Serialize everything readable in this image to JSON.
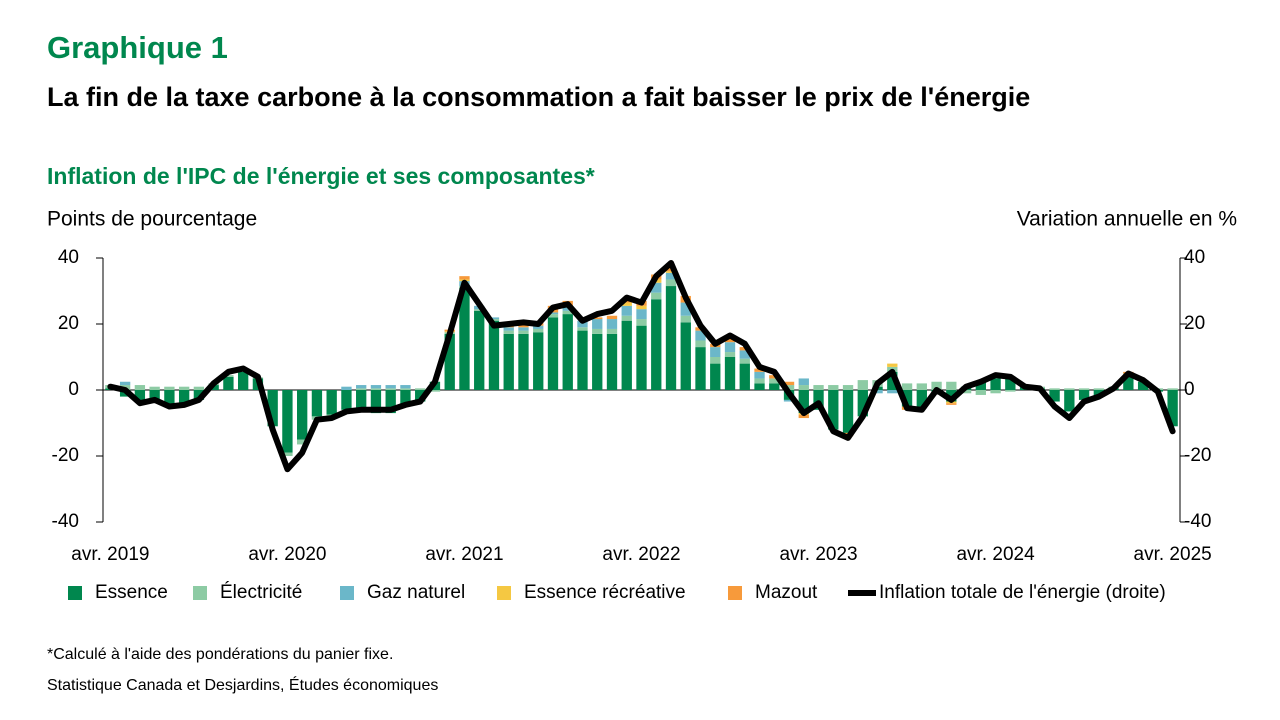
{
  "chart_data": {
    "type": "bar",
    "kicker": "Graphique 1",
    "title": "La fin de la taxe carbone à la consommation a fait baisser le prix de l'énergie",
    "subtitle": "Inflation de l'IPC de l'énergie et ses composantes*",
    "ylabel": "Points de pourcentage",
    "y2label": "Variation annuelle en %",
    "note": "*Calculé à l'aide des pondérations du panier fixe.",
    "source": "Statistique Canada et Desjardins, Études économiques",
    "stacked": true,
    "categories": [
      "avr. 2019",
      null,
      null,
      null,
      null,
      null,
      null,
      null,
      null,
      null,
      null,
      null,
      "avr. 2020",
      null,
      null,
      null,
      null,
      null,
      null,
      null,
      null,
      null,
      null,
      null,
      "avr. 2021",
      null,
      null,
      null,
      null,
      null,
      null,
      null,
      null,
      null,
      null,
      null,
      "avr. 2022",
      null,
      null,
      null,
      null,
      null,
      null,
      null,
      null,
      null,
      null,
      null,
      "avr. 2023",
      null,
      null,
      null,
      null,
      null,
      null,
      null,
      null,
      null,
      null,
      null,
      "avr. 2024",
      null,
      null,
      null,
      null,
      null,
      null,
      null,
      null,
      null,
      null,
      null,
      "avr. 2025"
    ],
    "ylim": [
      -40,
      40
    ],
    "yticks": [
      -40,
      -20,
      0,
      20,
      40
    ],
    "y2lim": [
      -40,
      40
    ],
    "y2ticks": [
      -40,
      -20,
      0,
      20,
      40
    ],
    "series": [
      {
        "name": "Essence",
        "color": "#00874e",
        "values": [
          0.5,
          -2,
          -3.5,
          -3,
          -4.5,
          -4,
          -3,
          1.5,
          4,
          5.5,
          3.5,
          -11,
          -19,
          -15,
          -8,
          -7.5,
          -6,
          -6.5,
          -7,
          -7,
          -5,
          -3.5,
          2.5,
          17,
          31,
          24,
          21,
          17,
          17,
          17.5,
          22,
          23,
          18,
          17,
          17,
          21,
          19.5,
          27.5,
          31.5,
          20.5,
          13,
          8,
          10,
          8,
          2,
          2,
          -3,
          -7,
          -6,
          -12,
          -13,
          -8,
          1,
          5.5,
          -5,
          -5.5,
          -1,
          -3.5,
          1,
          2.5,
          3.5,
          4,
          1,
          0.5,
          -3.5,
          -6.5,
          -3,
          -2,
          0.5,
          4.5,
          2.5,
          -0.5,
          -11
        ]
      },
      {
        "name": "Électricité",
        "color": "#8dcba4",
        "values": [
          1,
          1.5,
          1.5,
          1,
          1,
          1,
          1,
          0.5,
          0.5,
          0.5,
          0.3,
          0,
          -1,
          -1.5,
          -1,
          -0.5,
          0,
          0.5,
          0.5,
          0.5,
          0.5,
          0.5,
          -0.5,
          0.5,
          0.5,
          0.5,
          0.5,
          1,
          1,
          1,
          1,
          1,
          1,
          1.5,
          1.5,
          1.5,
          2,
          2,
          2,
          2,
          2,
          2,
          1.5,
          1.5,
          1.5,
          1.5,
          1.5,
          1.5,
          1.5,
          1.5,
          1.5,
          3,
          2,
          1.5,
          2,
          2,
          2.5,
          2.5,
          -1,
          -1.5,
          -1,
          -0.5,
          0.5,
          0.5,
          0.5,
          0.5,
          0.5,
          0.5,
          0.5,
          0.5,
          0.5,
          0.5,
          0.5
        ]
      },
      {
        "name": "Gaz naturel",
        "color": "#6bb7c9",
        "values": [
          0,
          1,
          0,
          0,
          0,
          0,
          0,
          0,
          0,
          0,
          0,
          0,
          0,
          0,
          0,
          0,
          1,
          1,
          1,
          1,
          1,
          0,
          0,
          0,
          1.5,
          1,
          0.5,
          1,
          1,
          1,
          0.5,
          1,
          2,
          3,
          3,
          3,
          3,
          3,
          2,
          4,
          3,
          3,
          3,
          2.5,
          2,
          0,
          -0.5,
          2,
          0,
          0,
          0,
          0,
          -1,
          -1,
          0,
          0,
          0,
          0,
          0,
          0,
          0,
          0,
          0,
          0,
          0,
          0,
          0,
          0,
          0,
          0,
          0,
          0,
          0
        ]
      },
      {
        "name": "Essence récréative",
        "color": "#f5c842",
        "values": [
          0,
          0,
          0,
          0,
          0,
          0,
          0,
          0,
          0,
          0,
          0,
          0,
          0,
          0,
          0,
          0,
          0,
          0,
          0,
          0,
          0,
          0,
          0,
          0.3,
          0.5,
          0,
          0,
          0,
          0,
          0,
          0,
          0,
          0,
          0,
          0,
          1,
          1,
          1,
          0.5,
          0,
          0,
          0,
          0,
          0,
          0,
          0,
          0,
          -0.5,
          0,
          0,
          0,
          0,
          0,
          1,
          0,
          0,
          0,
          -0.5,
          0,
          0,
          0,
          0,
          0,
          0,
          0,
          0,
          0,
          0,
          0,
          0,
          0,
          0,
          0
        ]
      },
      {
        "name": "Mazout",
        "color": "#f79a3b",
        "values": [
          0,
          0,
          0,
          0,
          0,
          0,
          0,
          0,
          0,
          0,
          0,
          0,
          0,
          0,
          0,
          0,
          0,
          0,
          0,
          0,
          0,
          0,
          0,
          0.5,
          1,
          0,
          0,
          1,
          1,
          1,
          2,
          2,
          0,
          0.5,
          1,
          1,
          1.5,
          1.5,
          1,
          2,
          1,
          1,
          1,
          1,
          1,
          1,
          1,
          -1,
          0,
          0,
          -1,
          0,
          0,
          0,
          -1,
          0,
          0,
          -0.5,
          0,
          0,
          0,
          0,
          0,
          0,
          0,
          0,
          0,
          0,
          0,
          0.5,
          0,
          0,
          0
        ]
      },
      {
        "name": "Inflation totale de l'énergie (droite)",
        "type": "line",
        "axis": "y2",
        "color": "#000000",
        "values": [
          1,
          0,
          -4,
          -3,
          -5,
          -4.5,
          -3,
          2,
          5.5,
          6.5,
          4,
          -12,
          -24,
          -19,
          -9,
          -8.5,
          -6.5,
          -6,
          -6,
          -6,
          -4.5,
          -3.5,
          2.5,
          17,
          32.5,
          26,
          19.5,
          20,
          20.5,
          20,
          25,
          26,
          21,
          23,
          24,
          28,
          26.5,
          34.5,
          38.5,
          28,
          19.5,
          14,
          16.5,
          14,
          7,
          5.5,
          -1,
          -7,
          -4,
          -12.5,
          -14.5,
          -8,
          2,
          5.5,
          -5.5,
          -6,
          0,
          -3,
          1,
          2.5,
          4.5,
          4,
          1,
          0.5,
          -5,
          -8.5,
          -3.5,
          -2,
          0.5,
          5,
          3,
          -0.5,
          -12.5
        ]
      }
    ]
  }
}
